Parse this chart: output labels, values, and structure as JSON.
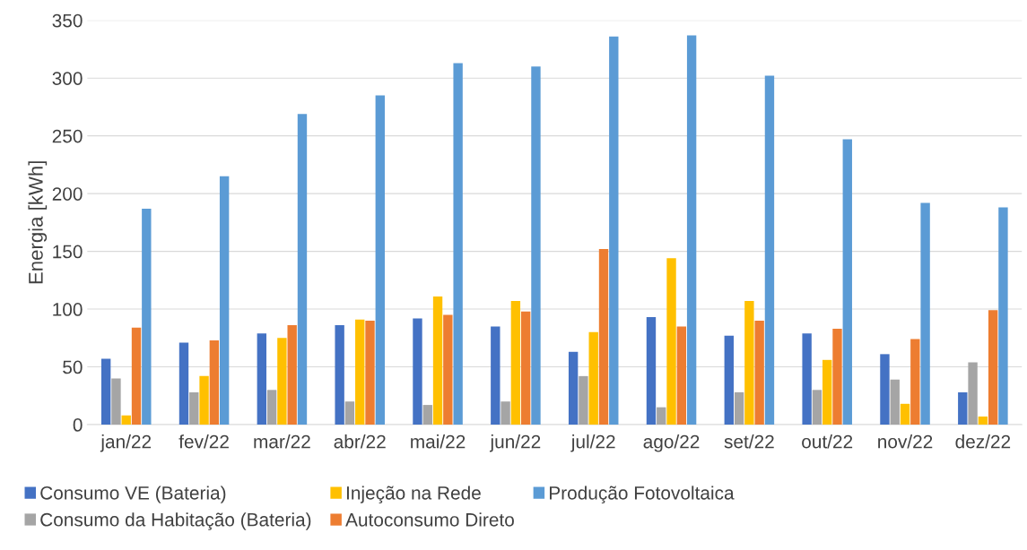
{
  "chart_data": {
    "type": "bar",
    "ylabel": "Energia [kWh]",
    "categories": [
      "jan/22",
      "fev/22",
      "mar/22",
      "abr/22",
      "mai/22",
      "jun/22",
      "jul/22",
      "ago/22",
      "set/22",
      "out/22",
      "nov/22",
      "dez/22"
    ],
    "series": [
      {
        "name": "Consumo VE (Bateria)",
        "color": "#4472c4",
        "values": [
          57,
          71,
          79,
          86,
          92,
          85,
          63,
          93,
          77,
          79,
          61,
          28
        ]
      },
      {
        "name": "Consumo da Habitação (Bateria)",
        "color": "#a5a5a5",
        "values": [
          40,
          28,
          30,
          20,
          17,
          20,
          42,
          15,
          28,
          30,
          39,
          54
        ]
      },
      {
        "name": "Injeção na Rede",
        "color": "#ffc000",
        "values": [
          8,
          42,
          75,
          91,
          111,
          107,
          80,
          144,
          107,
          56,
          18,
          7
        ]
      },
      {
        "name": "Autoconsumo Direto",
        "color": "#ed7d31",
        "values": [
          84,
          73,
          86,
          90,
          95,
          98,
          152,
          85,
          90,
          83,
          74,
          99
        ]
      },
      {
        "name": "Produção Fotovoltaica",
        "color": "#5b9bd5",
        "values": [
          187,
          215,
          269,
          285,
          313,
          310,
          336,
          337,
          302,
          247,
          192,
          188
        ]
      }
    ],
    "ylim": [
      0,
      350
    ],
    "yticks": [
      0,
      50,
      100,
      150,
      200,
      250,
      300,
      350
    ],
    "grid": "y",
    "legend": "bottom"
  }
}
